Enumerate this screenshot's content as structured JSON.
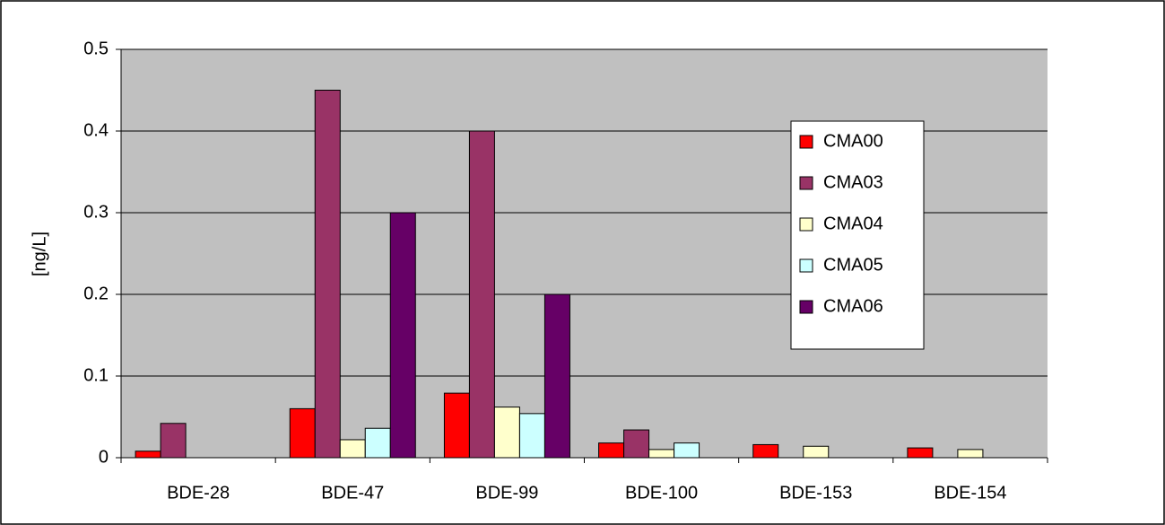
{
  "chart_data": {
    "type": "bar",
    "y_label": "[ng/L]",
    "categories": [
      "BDE-28",
      "BDE-47",
      "BDE-99",
      "BDE-100",
      "BDE-153",
      "BDE-154"
    ],
    "series": [
      {
        "name": "CMA00",
        "color": "#ff0000",
        "values": [
          0.008,
          0.06,
          0.079,
          0.018,
          0.016,
          0.012
        ]
      },
      {
        "name": "CMA03",
        "color": "#993366",
        "values": [
          0.042,
          0.45,
          0.4,
          0.034,
          0,
          0
        ]
      },
      {
        "name": "CMA04",
        "color": "#ffffcc",
        "values": [
          0,
          0.022,
          0.062,
          0.01,
          0.014,
          0.01
        ]
      },
      {
        "name": "CMA05",
        "color": "#ccffff",
        "values": [
          0,
          0.036,
          0.054,
          0.018,
          0,
          0
        ]
      },
      {
        "name": "CMA06",
        "color": "#660066",
        "values": [
          0,
          0.3,
          0.2,
          0,
          0,
          0
        ]
      }
    ],
    "ylim": [
      0,
      0.5
    ],
    "yticks": [
      0,
      0.1,
      0.2,
      0.3,
      0.4,
      0.5
    ],
    "grid": true,
    "legend": "right"
  }
}
